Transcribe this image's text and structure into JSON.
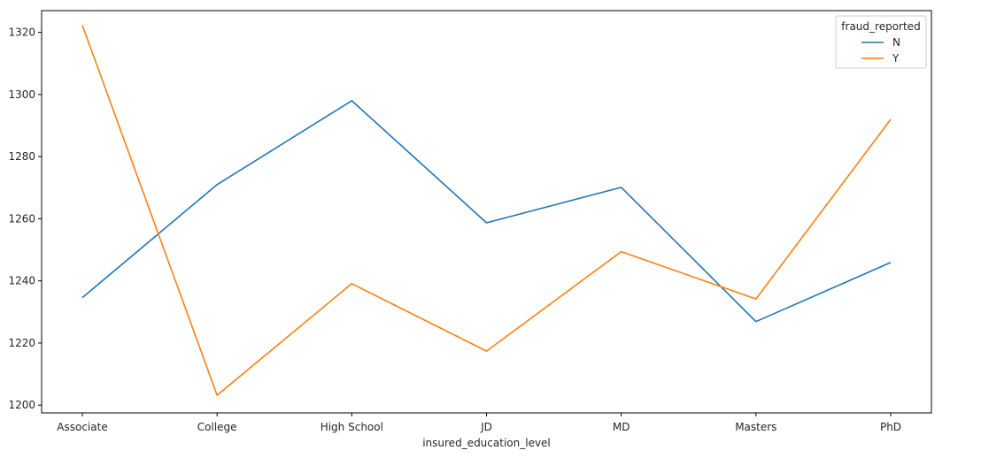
{
  "chart_data": {
    "type": "line",
    "title": "",
    "xlabel": "insured_education_level",
    "ylabel": "",
    "categories": [
      "Associate",
      "College",
      "High School",
      "JD",
      "MD",
      "Masters",
      "PhD"
    ],
    "series": [
      {
        "name": "N",
        "color": "#1f77b4",
        "values": [
          1234.6,
          1271.0,
          1298.0,
          1258.7,
          1270.1,
          1226.9,
          1245.9
        ]
      },
      {
        "name": "Y",
        "color": "#ff7f0e",
        "values": [
          1322.3,
          1203.2,
          1239.1,
          1217.4,
          1249.4,
          1234.2,
          1292.0
        ]
      }
    ],
    "ylim": [
      1197.5,
      1327.0
    ],
    "yticks": [
      1200,
      1220,
      1240,
      1260,
      1280,
      1300,
      1320
    ],
    "grid": false,
    "legend": {
      "title": "fraud_reported",
      "placement": "top-right"
    }
  }
}
